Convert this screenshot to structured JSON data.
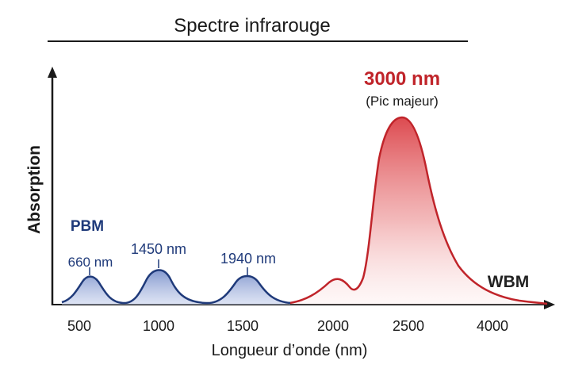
{
  "chart_data": {
    "type": "area",
    "title": "Spectre infrarouge",
    "xlabel": "Longueur d’onde (nm)",
    "ylabel": "Absorption",
    "x_ticks": [
      {
        "label": "500",
        "value": 500
      },
      {
        "label": "1000",
        "value": 1000
      },
      {
        "label": "1500",
        "value": 1500
      },
      {
        "label": "2000",
        "value": 2000
      },
      {
        "label": "2500",
        "value": 2500
      },
      {
        "label": "4000",
        "value": 4000
      }
    ],
    "xlim": [
      400,
      4500
    ],
    "ylim": [
      0,
      1.0
    ],
    "series": [
      {
        "name": "PBM",
        "color": "#1f3a7a",
        "fill": "#8fa3d4",
        "peaks": [
          {
            "x_label": "660 nm",
            "tick_position": "500-1000 region",
            "height": 0.14
          },
          {
            "x_label": "1450 nm",
            "tick_position": "1000",
            "height": 0.18
          },
          {
            "x_label": "1940 nm",
            "tick_position": "1500",
            "height": 0.15
          }
        ]
      },
      {
        "name": "WBM",
        "color": "#c0242a",
        "fill": "#e0555a",
        "peaks": [
          {
            "x_label": "",
            "tick_position": "2000",
            "height": 0.14
          },
          {
            "x_label": "3000 nm",
            "tick_position": "2500",
            "height": 0.97,
            "note": "(Pic majeur)"
          }
        ]
      }
    ],
    "annotations": {
      "pbm_label": "PBM",
      "wbm_label": "WBM",
      "peak_660": "660 nm",
      "peak_1450": "1450 nm",
      "peak_1940": "1940 nm",
      "peak_main": "3000 nm",
      "peak_main_note": "(Pic majeur)"
    }
  },
  "colors": {
    "axis": "#1a1a1a",
    "pbm_text": "#1f3a7a",
    "wbm_text": "#222222",
    "main_peak_text": "#c0242a"
  }
}
